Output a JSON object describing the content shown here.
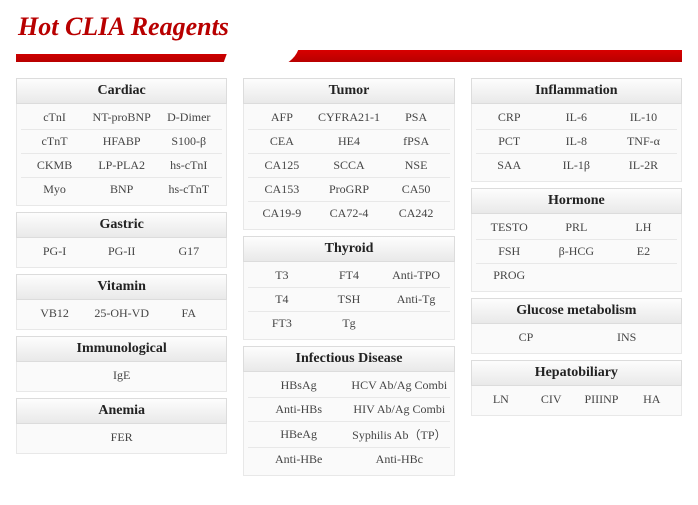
{
  "title": "Hot CLIA Reagents",
  "columns": [
    [
      {
        "name": "Cardiac",
        "rows": [
          [
            "cTnI",
            "NT-proBNP",
            "D-Dimer"
          ],
          [
            "cTnT",
            "HFABP",
            "S100-β"
          ],
          [
            "CKMB",
            "LP-PLA2",
            "hs-cTnI"
          ],
          [
            "Myo",
            "BNP",
            "hs-cTnT"
          ]
        ]
      },
      {
        "name": "Gastric",
        "rows": [
          [
            "PG-I",
            "PG-II",
            "G17"
          ]
        ]
      },
      {
        "name": "Vitamin",
        "rows": [
          [
            "VB12",
            "25-OH-VD",
            "FA"
          ]
        ]
      },
      {
        "name": "Immunological",
        "rows": [
          [
            "",
            "IgE",
            ""
          ]
        ]
      },
      {
        "name": "Anemia",
        "rows": [
          [
            "",
            "FER",
            ""
          ]
        ]
      }
    ],
    [
      {
        "name": "Tumor",
        "rows": [
          [
            "AFP",
            "CYFRA21-1",
            "PSA"
          ],
          [
            "CEA",
            "HE4",
            "fPSA"
          ],
          [
            "CA125",
            "SCCA",
            "NSE"
          ],
          [
            "CA153",
            "ProGRP",
            "CA50"
          ],
          [
            "CA19-9",
            "CA72-4",
            "CA242"
          ]
        ]
      },
      {
        "name": "Thyroid",
        "rows": [
          [
            "T3",
            "FT4",
            "Anti-TPO"
          ],
          [
            "T4",
            "TSH",
            "Anti-Tg"
          ],
          [
            "FT3",
            "Tg",
            ""
          ]
        ]
      },
      {
        "name": "Infectious Disease",
        "cols": 2,
        "rows": [
          [
            "HBsAg",
            "HCV Ab/Ag Combi"
          ],
          [
            "Anti-HBs",
            "HIV Ab/Ag Combi"
          ],
          [
            "HBeAg",
            "Syphilis Ab（TP）"
          ],
          [
            "Anti-HBe",
            "Anti-HBc"
          ]
        ]
      }
    ],
    [
      {
        "name": "Inflammation",
        "rows": [
          [
            "CRP",
            "IL-6",
            "IL-10"
          ],
          [
            "PCT",
            "IL-8",
            "TNF-α"
          ],
          [
            "SAA",
            "IL-1β",
            "IL-2R"
          ]
        ]
      },
      {
        "name": "Hormone",
        "rows": [
          [
            "TESTO",
            "PRL",
            "LH"
          ],
          [
            "FSH",
            "β-HCG",
            "E2"
          ],
          [
            "PROG",
            "",
            ""
          ]
        ]
      },
      {
        "name": "Glucose metabolism",
        "cols": 2,
        "rows": [
          [
            "CP",
            "INS"
          ]
        ]
      },
      {
        "name": "Hepatobiliary",
        "cols": 4,
        "rows": [
          [
            "LN",
            "CIV",
            "PIIINP",
            "HA"
          ]
        ]
      }
    ]
  ]
}
